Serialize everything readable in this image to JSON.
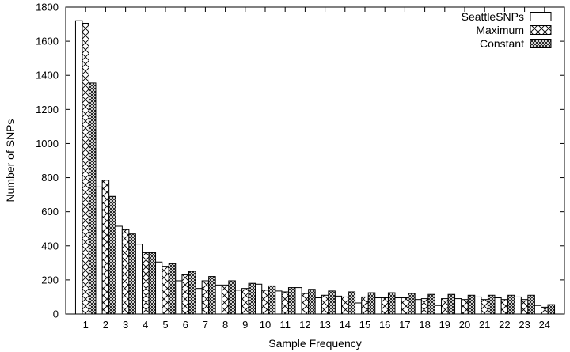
{
  "chart_data": {
    "type": "bar",
    "title": "",
    "xlabel": "Sample Frequency",
    "ylabel": "Number of SNPs",
    "ylim": [
      0,
      1800
    ],
    "yticks": [
      0,
      200,
      400,
      600,
      800,
      1000,
      1200,
      1400,
      1600,
      1800
    ],
    "grid": false,
    "legend_position": "top-right",
    "categories": [
      "1",
      "2",
      "3",
      "4",
      "5",
      "6",
      "7",
      "8",
      "9",
      "10",
      "11",
      "12",
      "13",
      "14",
      "15",
      "16",
      "17",
      "18",
      "19",
      "20",
      "21",
      "22",
      "23",
      "24"
    ],
    "series": [
      {
        "name": "SeattleSNPs",
        "pattern": "empty",
        "values": [
          1720,
          745,
          515,
          410,
          305,
          195,
          150,
          170,
          140,
          175,
          135,
          155,
          95,
          105,
          65,
          95,
          95,
          85,
          50,
          90,
          100,
          95,
          100,
          50
        ]
      },
      {
        "name": "Maximum",
        "pattern": "crosshatch-wide",
        "values": [
          1705,
          785,
          495,
          360,
          280,
          230,
          195,
          170,
          150,
          140,
          130,
          120,
          110,
          100,
          100,
          95,
          95,
          90,
          90,
          85,
          85,
          85,
          85,
          40
        ]
      },
      {
        "name": "Constant",
        "pattern": "crosshatch-dense",
        "values": [
          1355,
          690,
          470,
          360,
          295,
          250,
          220,
          195,
          180,
          165,
          155,
          145,
          135,
          130,
          125,
          125,
          120,
          115,
          115,
          110,
          110,
          110,
          110,
          55
        ]
      }
    ]
  }
}
